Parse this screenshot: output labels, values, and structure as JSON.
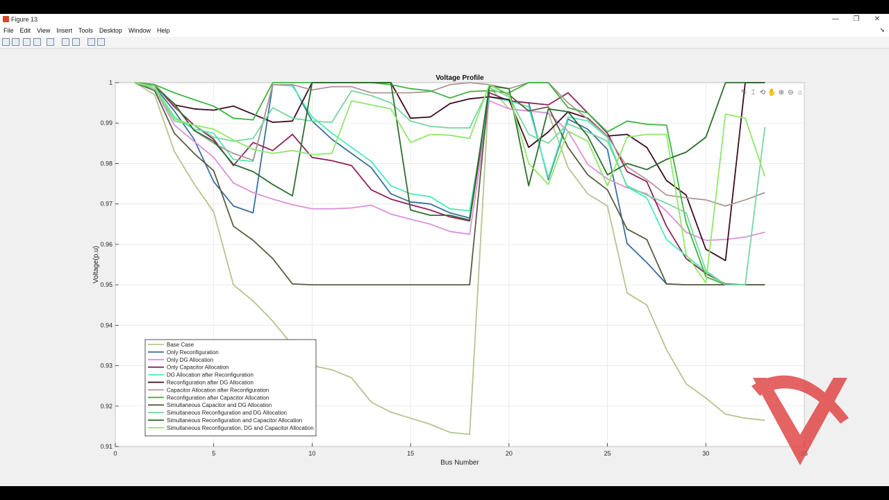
{
  "window": {
    "title": "Figure 13",
    "minimize": "—",
    "restore": "❐",
    "close": "✕"
  },
  "menu": [
    "File",
    "Edit",
    "View",
    "Insert",
    "Tools",
    "Desktop",
    "Window",
    "Help"
  ],
  "toolbar_icons": [
    "new-file-icon",
    "open-folder-icon",
    "save-icon",
    "print-icon",
    "print-preview-icon",
    "dock-icon",
    "property-editor-icon",
    "pointer-icon",
    "plot-browser-icon"
  ],
  "axes_toolbar_icons": [
    "brush-icon",
    "data-tip-icon",
    "rotate-icon",
    "pan-icon",
    "zoom-in-icon",
    "zoom-out-icon",
    "home-icon"
  ],
  "watermark": {
    "color": "#e04848"
  },
  "chart_data": {
    "type": "line",
    "title": "Voltage Profile",
    "xlabel": "Bus Number",
    "ylabel": "Voltage(p.u)",
    "xlim": [
      0,
      35
    ],
    "ylim": [
      0.91,
      1.0
    ],
    "xticks": [
      0,
      5,
      10,
      15,
      20,
      25,
      30,
      35
    ],
    "yticks": [
      0.91,
      0.92,
      0.93,
      0.94,
      0.95,
      0.96,
      0.97,
      0.98,
      0.99,
      1.0
    ],
    "ytick_labels": [
      "0.91",
      "0.92",
      "0.93",
      "0.94",
      "0.95",
      "0.96",
      "0.97",
      "0.98",
      "0.99",
      "1"
    ],
    "grid": true,
    "legend_position": "lower-left",
    "x": [
      1,
      2,
      3,
      4,
      5,
      6,
      7,
      8,
      9,
      10,
      11,
      12,
      13,
      14,
      15,
      16,
      17,
      18,
      19,
      20,
      21,
      22,
      23,
      24,
      25,
      26,
      27,
      28,
      29,
      30,
      31,
      32,
      33
    ],
    "series": [
      {
        "name": "Base Case",
        "color": "#b5c48e",
        "values": [
          1.0,
          0.997,
          0.983,
          0.975,
          0.968,
          0.95,
          0.946,
          0.941,
          0.935,
          0.93,
          0.929,
          0.927,
          0.921,
          0.9185,
          0.917,
          0.9155,
          0.9135,
          0.913,
          0.999,
          0.9935,
          0.993,
          0.9925,
          0.979,
          0.9725,
          0.9695,
          0.948,
          0.945,
          0.934,
          0.9255,
          0.922,
          0.918,
          0.917,
          0.9165
        ]
      },
      {
        "name": "Only Reconfiguration",
        "color": "#3a6e9e",
        "values": [
          1.0,
          0.999,
          0.993,
          0.986,
          0.9755,
          0.9695,
          0.9678,
          0.9995,
          0.9995,
          0.9905,
          0.986,
          0.9825,
          0.979,
          0.9725,
          0.9705,
          0.97,
          0.9678,
          0.9665,
          0.9965,
          0.9955,
          0.995,
          0.976,
          0.991,
          0.9885,
          0.9835,
          0.9602,
          0.9555,
          0.9502,
          0.95,
          0.95,
          0.95,
          0.95,
          0.95
        ]
      },
      {
        "name": "Only DG Allocation",
        "color": "#dd8fdd",
        "values": [
          1.0,
          0.9985,
          0.9895,
          0.9855,
          0.9815,
          0.9752,
          0.9728,
          0.9712,
          0.9698,
          0.9688,
          0.9688,
          0.969,
          0.9697,
          0.9675,
          0.9662,
          0.965,
          0.9632,
          0.9625,
          0.9955,
          0.9935,
          0.993,
          0.9925,
          0.988,
          0.9798,
          0.9762,
          0.974,
          0.9725,
          0.9682,
          0.963,
          0.961,
          0.9612,
          0.9618,
          0.963
        ]
      },
      {
        "name": "Only Capacitor Allocation",
        "color": "#8e2256",
        "values": [
          1.0,
          0.9995,
          0.994,
          0.9895,
          0.986,
          0.9795,
          0.9852,
          0.9832,
          0.9872,
          0.9815,
          0.9807,
          0.9795,
          0.9735,
          0.9712,
          0.9698,
          0.9685,
          0.9668,
          0.9658,
          0.9975,
          0.9955,
          0.995,
          0.9945,
          0.9975,
          0.9925,
          0.9875,
          0.978,
          0.9755,
          0.9645,
          0.9565,
          0.9528,
          0.9502,
          0.95,
          0.95
        ]
      },
      {
        "name": "DG Allocation after Reconfiguration",
        "color": "#4cebb4",
        "values": [
          1.0,
          0.999,
          0.9915,
          0.9885,
          0.9875,
          0.981,
          0.9805,
          0.9995,
          0.9992,
          0.9915,
          0.9875,
          0.984,
          0.9805,
          0.9745,
          0.9725,
          0.9718,
          0.9688,
          0.9683,
          0.9965,
          0.9955,
          0.994,
          0.9765,
          0.9915,
          0.9905,
          0.9865,
          0.9742,
          0.9715,
          0.9612,
          0.9572,
          0.9532,
          0.95,
          0.95,
          0.95
        ]
      },
      {
        "name": "Reconfiguration after DG Allocation",
        "color": "#3c0a1e",
        "values": [
          1.0,
          0.9995,
          0.9945,
          0.9935,
          0.9932,
          0.9942,
          0.9922,
          0.9902,
          0.9905,
          1.0,
          1.0,
          1.0,
          1.0,
          1.0,
          0.9912,
          0.9915,
          0.9948,
          0.996,
          0.9965,
          0.9958,
          0.984,
          0.9878,
          0.9928,
          0.9912,
          0.9868,
          0.9872,
          0.984,
          0.9758,
          0.9722,
          0.9588,
          0.956,
          1.0,
          1.0
        ]
      },
      {
        "name": "Capacitor Allocation after Reconfiguration",
        "color": "#b09494",
        "values": [
          1.0,
          0.9995,
          0.9945,
          0.9882,
          0.985,
          0.9825,
          0.9808,
          0.9995,
          0.9995,
          0.9982,
          0.999,
          0.999,
          0.9975,
          0.9975,
          0.9975,
          0.9978,
          0.9995,
          1.0,
          0.9995,
          0.9985,
          1.0,
          1.0,
          0.995,
          0.991,
          0.9868,
          0.9792,
          0.976,
          0.9722,
          0.9715,
          0.971,
          0.9695,
          0.971,
          0.9728
        ]
      },
      {
        "name": "Reconfiguration after Capacitor Allocation",
        "color": "#3eb43e",
        "values": [
          1.0,
          0.9995,
          0.9975,
          0.9958,
          0.9942,
          0.9912,
          0.9908,
          1.0,
          1.0,
          1.0,
          1.0,
          1.0,
          1.0,
          0.9995,
          0.9985,
          0.998,
          0.9962,
          0.9978,
          0.998,
          0.9975,
          1.0,
          1.0,
          0.9938,
          0.9925,
          0.9878,
          0.9905,
          0.9897,
          0.9895,
          0.9655,
          0.952,
          0.95,
          0.95,
          0.95
        ]
      },
      {
        "name": "Simultaneous Capacitor and DG Allocation",
        "color": "#5c5c40",
        "values": [
          1.0,
          0.998,
          0.9875,
          0.9825,
          0.9782,
          0.9645,
          0.961,
          0.9565,
          0.9502,
          0.95,
          0.95,
          0.95,
          0.95,
          0.95,
          0.95,
          0.95,
          0.95,
          0.95,
          0.9995,
          0.997,
          0.993,
          0.994,
          0.984,
          0.9772,
          0.9735,
          0.9638,
          0.9612,
          0.9502,
          0.95,
          0.95,
          0.95,
          0.95,
          0.95
        ]
      },
      {
        "name": "Simultaneous Reconfiguration and DG Allocation",
        "color": "#74d79e",
        "values": [
          1.0,
          0.9985,
          0.9905,
          0.9895,
          0.9865,
          0.9855,
          0.9862,
          0.9938,
          0.9912,
          0.9905,
          0.9902,
          0.998,
          0.9968,
          0.995,
          0.9905,
          0.9892,
          0.9888,
          0.9888,
          0.9988,
          0.9965,
          0.9872,
          0.985,
          0.9898,
          0.9878,
          0.9855,
          0.9745,
          0.9722,
          0.9702,
          0.9678,
          0.9535,
          0.95,
          0.95,
          0.989
        ]
      },
      {
        "name": "Simultaneous Reconfiguration and Capacitor Allocation",
        "color": "#2a6e2a",
        "values": [
          1.0,
          0.999,
          0.9948,
          0.9882,
          0.9855,
          0.9798,
          0.978,
          0.9748,
          0.972,
          1.0,
          1.0,
          1.0,
          1.0,
          1.0,
          0.9685,
          0.9672,
          0.9672,
          0.966,
          0.9992,
          0.9985,
          0.9745,
          0.9935,
          0.9928,
          0.9868,
          0.9772,
          0.98,
          0.9785,
          0.981,
          0.9828,
          0.9865,
          1.0,
          1.0,
          1.0
        ]
      },
      {
        "name": "Simultaneous Reconfiguration, DG and Capacitor Allocation",
        "color": "#8ee86a",
        "values": [
          1.0,
          0.999,
          0.991,
          0.9895,
          0.9885,
          0.9858,
          0.9835,
          0.9825,
          0.9832,
          0.9822,
          0.9825,
          0.9955,
          0.9945,
          0.9935,
          0.9852,
          0.9872,
          0.987,
          0.9862,
          0.9995,
          0.9972,
          0.98,
          0.9748,
          0.988,
          0.9855,
          0.9745,
          0.9865,
          0.9872,
          0.9872,
          0.9575,
          0.9505,
          0.9922,
          0.9912,
          0.9768
        ]
      }
    ]
  }
}
